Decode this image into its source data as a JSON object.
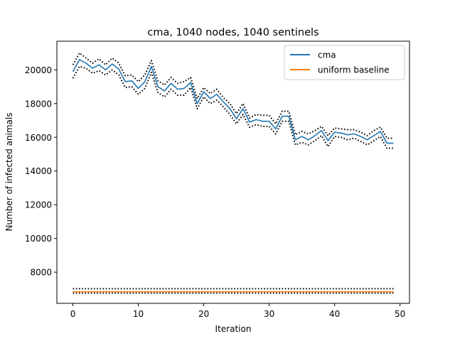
{
  "chart_data": {
    "type": "line",
    "title": "cma, 1040 nodes, 1040 sentinels",
    "xlabel": "Iteration",
    "ylabel": "Number of infected animals",
    "xlim": [
      -2.45,
      51.45
    ],
    "ylim": [
      6150,
      21700
    ],
    "xticks": [
      0,
      10,
      20,
      30,
      40,
      50
    ],
    "yticks": [
      8000,
      10000,
      12000,
      14000,
      16000,
      18000,
      20000
    ],
    "grid": false,
    "legend_position": "top-right",
    "x": [
      0,
      1,
      2,
      3,
      4,
      5,
      6,
      7,
      8,
      9,
      10,
      11,
      12,
      13,
      14,
      15,
      16,
      17,
      18,
      19,
      20,
      21,
      22,
      23,
      24,
      25,
      26,
      27,
      28,
      29,
      30,
      31,
      32,
      33,
      34,
      35,
      36,
      37,
      38,
      39,
      40,
      41,
      42,
      43,
      44,
      45,
      46,
      47,
      48,
      49
    ],
    "series": [
      {
        "name": "cma",
        "color": "#1f77b4",
        "style": "solid",
        "values": [
          19900,
          20600,
          20400,
          20100,
          20300,
          20000,
          20350,
          20050,
          19300,
          19350,
          18900,
          19300,
          20200,
          19000,
          18750,
          19200,
          18850,
          18900,
          19250,
          18000,
          18700,
          18300,
          18550,
          18100,
          17700,
          17100,
          17700,
          16900,
          17050,
          16950,
          16950,
          16500,
          17250,
          17250,
          15850,
          16050,
          15850,
          16100,
          16400,
          15800,
          16300,
          16250,
          16150,
          16200,
          16050,
          15850,
          16100,
          16350,
          15650,
          15650
        ]
      },
      {
        "name": "cma upper bound",
        "color": "#000000",
        "style": "dotted",
        "values": [
          20300,
          21000,
          20700,
          20400,
          20650,
          20300,
          20700,
          20400,
          19650,
          19700,
          19300,
          19700,
          20550,
          19350,
          19100,
          19550,
          19200,
          19300,
          19550,
          18300,
          18950,
          18600,
          18850,
          18350,
          18000,
          17400,
          18000,
          17150,
          17350,
          17300,
          17300,
          16800,
          17550,
          17550,
          16150,
          16350,
          16200,
          16400,
          16650,
          16100,
          16550,
          16500,
          16450,
          16450,
          16300,
          16100,
          16400,
          16600,
          15950,
          15950
        ]
      },
      {
        "name": "cma lower bound",
        "color": "#000000",
        "style": "dotted",
        "values": [
          19500,
          20200,
          20100,
          19800,
          19950,
          19700,
          20000,
          19700,
          18950,
          19000,
          18550,
          18900,
          19850,
          18650,
          18400,
          18850,
          18500,
          18500,
          18950,
          17700,
          18400,
          18000,
          18200,
          17800,
          17350,
          16800,
          17350,
          16600,
          16750,
          16650,
          16650,
          16200,
          16950,
          16950,
          15550,
          15700,
          15550,
          15800,
          16100,
          15450,
          16050,
          16000,
          15850,
          15950,
          15750,
          15550,
          15800,
          16050,
          15350,
          15350
        ]
      },
      {
        "name": "uniform baseline",
        "color": "#ff7f0e",
        "style": "solid",
        "values": [
          6840,
          6840,
          6840,
          6840,
          6840,
          6840,
          6840,
          6840,
          6840,
          6840,
          6840,
          6840,
          6840,
          6840,
          6840,
          6840,
          6840,
          6840,
          6840,
          6840,
          6840,
          6840,
          6840,
          6840,
          6840,
          6840,
          6840,
          6840,
          6840,
          6840,
          6840,
          6840,
          6840,
          6840,
          6840,
          6840,
          6840,
          6840,
          6840,
          6840,
          6840,
          6840,
          6840,
          6840,
          6840,
          6840,
          6840,
          6840,
          6840,
          6840
        ]
      },
      {
        "name": "uniform baseline upper bound",
        "color": "#000000",
        "style": "dotted",
        "values": [
          7020,
          7020,
          7020,
          7020,
          7020,
          7020,
          7020,
          7020,
          7020,
          7020,
          7020,
          7020,
          7020,
          7020,
          7020,
          7020,
          7020,
          7020,
          7020,
          7020,
          7020,
          7020,
          7020,
          7020,
          7020,
          7020,
          7020,
          7020,
          7020,
          7020,
          7020,
          7020,
          7020,
          7020,
          7020,
          7020,
          7020,
          7020,
          7020,
          7020,
          7020,
          7020,
          7020,
          7020,
          7020,
          7020,
          7020,
          7020,
          7020,
          7020
        ]
      },
      {
        "name": "uniform baseline lower bound",
        "color": "#000000",
        "style": "dotted",
        "values": [
          6760,
          6760,
          6760,
          6760,
          6760,
          6760,
          6760,
          6760,
          6760,
          6760,
          6760,
          6760,
          6760,
          6760,
          6760,
          6760,
          6760,
          6760,
          6760,
          6760,
          6760,
          6760,
          6760,
          6760,
          6760,
          6760,
          6760,
          6760,
          6760,
          6760,
          6760,
          6760,
          6760,
          6760,
          6760,
          6760,
          6760,
          6760,
          6760,
          6760,
          6760,
          6760,
          6760,
          6760,
          6760,
          6760,
          6760,
          6760,
          6760,
          6760
        ]
      }
    ],
    "legend": [
      {
        "label": "cma",
        "color": "#1f77b4"
      },
      {
        "label": "uniform baseline",
        "color": "#ff7f0e"
      }
    ]
  }
}
